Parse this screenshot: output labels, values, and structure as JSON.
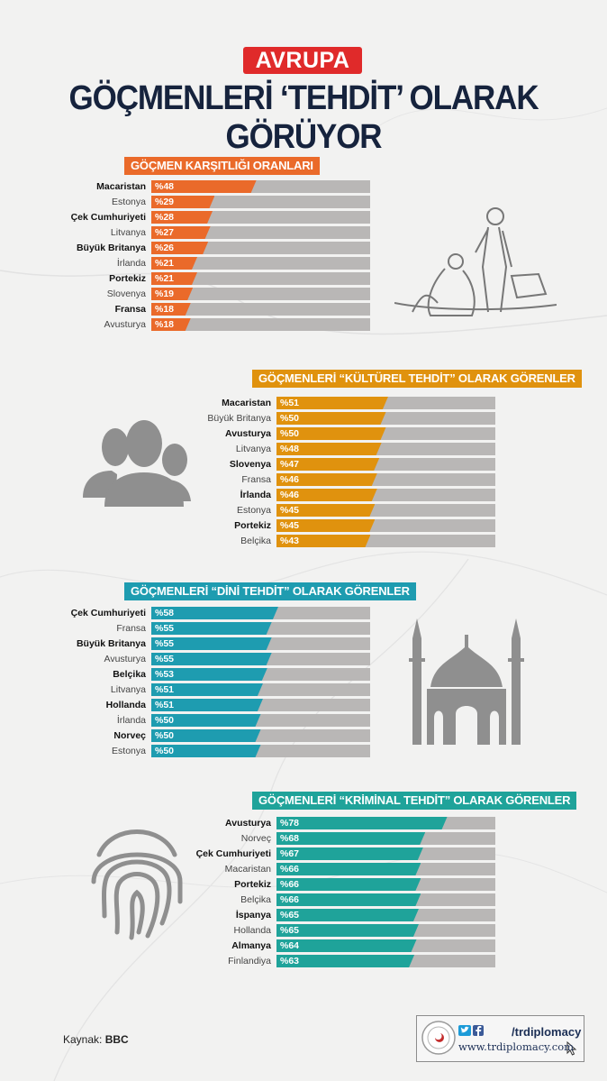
{
  "header": {
    "badge": "AVRUPA",
    "title": "GÖÇMENLERİ ‘TEHDİT’ OLARAK GÖRÜYOR"
  },
  "colors": {
    "orange": "#ea6a2a",
    "amber": "#e0920e",
    "teal": "#1e9cb0",
    "teal2": "#1fa39a",
    "track": "#b9b7b6",
    "navy": "#16233d",
    "red": "#e02a2a"
  },
  "chart_data": [
    {
      "type": "bar",
      "title": "GÖÇMEN KARŞITLIĞI ORANLARI",
      "categories": [
        "Macaristan",
        "Estonya",
        "Çek Cumhuriyeti",
        "Litvanya",
        "Büyük Britanya",
        "İrlanda",
        "Portekiz",
        "Slovenya",
        "Fransa",
        "Avusturya"
      ],
      "values": [
        48,
        29,
        28,
        27,
        26,
        21,
        21,
        19,
        18,
        18
      ],
      "labels": [
        "%48",
        "%29",
        "%28",
        "%27",
        "%26",
        "%21",
        "%21",
        "%19",
        "%18",
        "%18"
      ],
      "ylim": [
        0,
        100
      ]
    },
    {
      "type": "bar",
      "title": "GÖÇMENLERİ “KÜLTÜREL TEHDİT” OLARAK GÖRENLER",
      "categories": [
        "Macaristan",
        "Büyük Britanya",
        "Avusturya",
        "Litvanya",
        "Slovenya",
        "Fransa",
        "İrlanda",
        "Estonya",
        "Portekiz",
        "Belçika"
      ],
      "values": [
        51,
        50,
        50,
        48,
        47,
        46,
        46,
        45,
        45,
        43
      ],
      "labels": [
        "%51",
        "%50",
        "%50",
        "%48",
        "%47",
        "%46",
        "%46",
        "%45",
        "%45",
        "%43"
      ],
      "ylim": [
        0,
        100
      ]
    },
    {
      "type": "bar",
      "title": "GÖÇMENLERİ “DİNİ TEHDİT” OLARAK GÖRENLER",
      "categories": [
        "Çek Cumhuriyeti",
        "Fransa",
        "Büyük Britanya",
        "Avusturya",
        "Belçika",
        "Litvanya",
        "Hollanda",
        "İrlanda",
        "Norveç",
        "Estonya"
      ],
      "values": [
        58,
        55,
        55,
        55,
        53,
        51,
        51,
        50,
        50,
        50
      ],
      "labels": [
        "%58",
        "%55",
        "%55",
        "%55",
        "%53",
        "%51",
        "%51",
        "%50",
        "%50",
        "%50"
      ],
      "ylim": [
        0,
        100
      ]
    },
    {
      "type": "bar",
      "title": "GÖÇMENLERİ “KRİMİNAL TEHDİT” OLARAK GÖRENLER",
      "categories": [
        "Avusturya",
        "Norveç",
        "Çek Cumhuriyeti",
        "Macaristan",
        "Portekiz",
        "Belçika",
        "İspanya",
        "Hollanda",
        "Almanya",
        "Finlandiya"
      ],
      "values": [
        78,
        68,
        67,
        66,
        66,
        66,
        65,
        65,
        64,
        63
      ],
      "labels": [
        "%78",
        "%68",
        "%67",
        "%66",
        "%66",
        "%66",
        "%65",
        "%65",
        "%64",
        "%63"
      ],
      "ylim": [
        0,
        100
      ]
    }
  ],
  "footer": {
    "source_label": "Kaynak:",
    "source_value": "BBC",
    "handle": "/trdiplomacy",
    "website": "www.trdiplomacy.com"
  }
}
